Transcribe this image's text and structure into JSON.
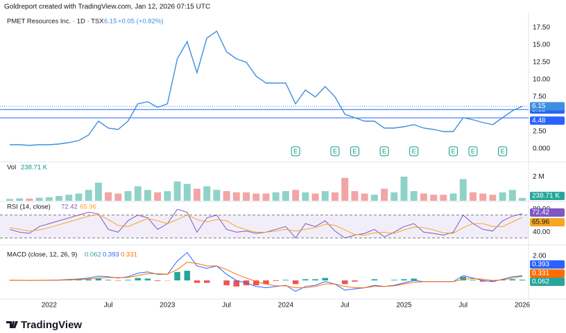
{
  "attribution": "Goldreport created with TradingView.com, Jan 12, 2026 07:15 UTC",
  "brand": "TradingView",
  "chart_data": {
    "type": "line",
    "title": "PMET Resources Inc. · 1D · TSX",
    "change": "+0.05 (+0.82%)",
    "x": [
      "2021-09",
      "2021-10",
      "2021-11",
      "2021-12",
      "2022-01",
      "2022-02",
      "2022-03",
      "2022-04",
      "2022-05",
      "2022-06",
      "2022-07",
      "2022-08",
      "2022-09",
      "2022-10",
      "2022-11",
      "2022-12",
      "2023-01",
      "2023-02",
      "2023-03",
      "2023-04",
      "2023-05",
      "2023-06",
      "2023-07",
      "2023-08",
      "2023-09",
      "2023-10",
      "2023-11",
      "2023-12",
      "2024-01",
      "2024-02",
      "2024-03",
      "2024-04",
      "2024-05",
      "2024-06",
      "2024-07",
      "2024-08",
      "2024-09",
      "2024-10",
      "2024-11",
      "2024-12",
      "2025-01",
      "2025-02",
      "2025-03",
      "2025-04",
      "2025-05",
      "2025-06",
      "2025-07",
      "2025-08",
      "2025-09",
      "2025-10",
      "2025-11",
      "2025-12",
      "2026-01"
    ],
    "xticks": [
      {
        "value": "2022-01",
        "label": "2022"
      },
      {
        "value": "2022-07",
        "label": "Jul"
      },
      {
        "value": "2023-01",
        "label": "2023"
      },
      {
        "value": "2023-07",
        "label": "Jul"
      },
      {
        "value": "2024-01",
        "label": "2024"
      },
      {
        "value": "2024-07",
        "label": "Jul"
      },
      {
        "value": "2025-01",
        "label": "2025"
      },
      {
        "value": "2025-07",
        "label": "Jul"
      },
      {
        "value": "2026-01",
        "label": "2026"
      }
    ],
    "series": [
      {
        "color": "#3d8ee0",
        "values": [
          0.6,
          0.6,
          0.5,
          0.6,
          0.6,
          0.7,
          0.9,
          1.2,
          2.0,
          4.0,
          3.0,
          2.8,
          4.0,
          6.5,
          6.8,
          6.0,
          6.5,
          13.0,
          15.5,
          11.0,
          16.0,
          17.0,
          14.0,
          13.0,
          12.5,
          10.5,
          9.5,
          9.5,
          9.5,
          6.5,
          8.5,
          7.5,
          9.0,
          7.5,
          5.0,
          4.5,
          4.0,
          4.0,
          3.0,
          3.0,
          3.2,
          3.5,
          3.0,
          2.8,
          2.5,
          2.5,
          4.5,
          4.2,
          3.8,
          3.5,
          4.5,
          5.5,
          6.15
        ]
      }
    ],
    "ylim": [
      -1.7,
      19.3
    ],
    "yticks": [
      {
        "value": 17.5,
        "label": "17.50"
      },
      {
        "value": 15,
        "label": "15.00"
      },
      {
        "value": 12.5,
        "label": "12.50"
      },
      {
        "value": 10,
        "label": "10.00"
      },
      {
        "value": 7.5,
        "label": "7.50"
      },
      {
        "value": 2.5,
        "label": "2.50"
      },
      {
        "value": 0,
        "label": "0.000"
      }
    ],
    "levels": [
      5.68,
      4.48
    ],
    "level_color": "#2962ff",
    "earnings": {
      "label": "E",
      "color": "#089981",
      "x": [
        "2024-02",
        "2024-06",
        "2024-08",
        "2024-11",
        "2025-02",
        "2025-06",
        "2025-08",
        "2025-11"
      ]
    },
    "volume": {
      "type": "bar",
      "name": "Vol",
      "last_label": "238.71 K",
      "colors": {
        "up": "#8fd3c8",
        "down": "#f3a5a5"
      },
      "values": [
        150000,
        200000,
        180000,
        250000,
        300000,
        400000,
        500000,
        600000,
        900000,
        1500000,
        700000,
        600000,
        800000,
        1200000,
        900000,
        700000,
        800000,
        1600000,
        1400000,
        1000000,
        1200000,
        900000,
        800000,
        700000,
        700000,
        600000,
        600000,
        700000,
        800000,
        900000,
        700000,
        600000,
        800000,
        700000,
        1900000,
        800000,
        600000,
        500000,
        1000000,
        700000,
        2000000,
        800000,
        600000,
        500000,
        500000,
        600000,
        1800000,
        700000,
        600000,
        500000,
        700000,
        900000,
        238710
      ],
      "ylim": [
        0,
        3100000
      ],
      "yticks": [
        {
          "value": 2000000,
          "label": "2 M"
        }
      ]
    },
    "rsi": {
      "type": "line",
      "name": "RSI (14, close)",
      "band": [
        30,
        70
      ],
      "series": [
        {
          "color": "#7e57c2",
          "values": [
            45,
            40,
            38,
            50,
            55,
            60,
            65,
            70,
            75,
            72,
            45,
            40,
            60,
            70,
            65,
            45,
            55,
            80,
            75,
            40,
            65,
            70,
            45,
            40,
            42,
            38,
            40,
            45,
            50,
            30,
            55,
            50,
            60,
            42,
            30,
            35,
            38,
            45,
            32,
            40,
            50,
            55,
            40,
            38,
            35,
            40,
            70,
            55,
            45,
            42,
            60,
            68,
            72.42
          ]
        },
        {
          "color": "#f5a623",
          "values": [
            48,
            45,
            42,
            44,
            48,
            53,
            58,
            63,
            68,
            71,
            62,
            52,
            50,
            57,
            64,
            60,
            55,
            62,
            70,
            62,
            58,
            62,
            60,
            50,
            44,
            40,
            40,
            42,
            45,
            42,
            45,
            48,
            54,
            52,
            44,
            36,
            35,
            39,
            40,
            38,
            44,
            49,
            48,
            44,
            39,
            38,
            48,
            55,
            55,
            50,
            50,
            58,
            65.96
          ]
        }
      ],
      "ylim": [
        20,
        91.25
      ],
      "yticks": [
        {
          "value": 80,
          "label": "80.00"
        },
        {
          "value": 40,
          "label": "40.00"
        }
      ]
    },
    "macd": {
      "type": "macd",
      "name": "MACD (close, 12, 26, 9)",
      "histogram": {
        "colors": {
          "up": "#26a69a",
          "down": "#ef5350"
        },
        "values": [
          0.01,
          0,
          -0.01,
          0,
          0.01,
          0.02,
          0.04,
          0.05,
          0.08,
          0.15,
          0.05,
          -0.03,
          0.05,
          0.2,
          0.15,
          -0.05,
          -0.02,
          0.7,
          0.8,
          -0.2,
          -0.2,
          0,
          -0.4,
          -0.5,
          -0.4,
          -0.4,
          -0.3,
          -0.05,
          0.05,
          -0.3,
          0.1,
          0.1,
          0.2,
          0,
          -0.3,
          -0.1,
          0,
          0.1,
          0,
          0.05,
          0.1,
          0.15,
          0,
          0,
          0,
          0,
          0.3,
          0.05,
          -0.1,
          -0.1,
          0.05,
          0.1,
          0.062
        ]
      },
      "series": [
        {
          "color": "#2962ff",
          "values": [
            0.02,
            0.01,
            0,
            0.01,
            0.02,
            0.04,
            0.08,
            0.12,
            0.2,
            0.35,
            0.3,
            0.2,
            0.3,
            0.6,
            0.7,
            0.5,
            0.5,
            1.6,
            2.3,
            1.2,
            1.0,
            1.2,
            0.5,
            0,
            -0.2,
            -0.5,
            -0.6,
            -0.5,
            -0.4,
            -0.9,
            -0.5,
            -0.4,
            -0.1,
            -0.3,
            -0.8,
            -0.7,
            -0.6,
            -0.4,
            -0.5,
            -0.4,
            -0.2,
            0,
            -0.1,
            -0.1,
            -0.1,
            -0.1,
            0.4,
            0.2,
            0,
            -0.1,
            0.1,
            0.3,
            0.393
          ]
        },
        {
          "color": "#ff6d00",
          "values": [
            0.01,
            0.01,
            0.01,
            0.01,
            0.01,
            0.02,
            0.04,
            0.07,
            0.12,
            0.2,
            0.25,
            0.23,
            0.25,
            0.4,
            0.55,
            0.55,
            0.52,
            0.9,
            1.5,
            1.4,
            1.2,
            1.2,
            0.9,
            0.5,
            0.2,
            -0.1,
            -0.3,
            -0.45,
            -0.45,
            -0.6,
            -0.6,
            -0.5,
            -0.3,
            -0.3,
            -0.5,
            -0.6,
            -0.6,
            -0.5,
            -0.5,
            -0.45,
            -0.3,
            -0.15,
            -0.1,
            -0.1,
            -0.1,
            -0.1,
            0.1,
            0.15,
            0.1,
            0,
            0.05,
            0.2,
            0.331
          ]
        }
      ],
      "ylim": [
        -1.54,
        2.69
      ],
      "yticks": [
        {
          "value": 2,
          "label": "2.00"
        }
      ]
    }
  }
}
